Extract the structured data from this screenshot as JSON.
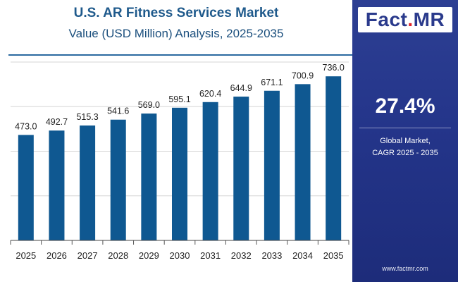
{
  "header": {
    "title": "U.S. AR Fitness Services Market",
    "subtitle": "Value (USD Million) Analysis, 2025-2035"
  },
  "brand": {
    "logo_left": "Fact",
    "logo_dot": ".",
    "logo_right": "MR",
    "website": "www.factmr.com"
  },
  "summary": {
    "cagr_value": "27.4%",
    "cagr_label_line1": "Global Market,",
    "cagr_label_line2": "CAGR 2025 - 2035"
  },
  "colors": {
    "bar": "#0f5891",
    "grid": "#d6d6d6",
    "panel": "#24358a"
  },
  "chart_data": {
    "type": "bar",
    "title": "U.S. AR Fitness Services Market",
    "subtitle": "Value (USD Million) Analysis, 2025-2035",
    "xlabel": "",
    "ylabel": "",
    "categories": [
      "2025",
      "2026",
      "2027",
      "2028",
      "2029",
      "2030",
      "2031",
      "2032",
      "2033",
      "2034",
      "2035"
    ],
    "values": [
      473.0,
      492.7,
      515.3,
      541.6,
      569.0,
      595.1,
      620.4,
      644.9,
      671.1,
      700.9,
      736.0
    ],
    "labels": [
      "473.0",
      "492.7",
      "515.3",
      "541.6",
      "569.0",
      "595.1",
      "620.4",
      "644.9",
      "671.1",
      "700.9",
      "736.0"
    ],
    "ylim": [
      0,
      800
    ],
    "grid": true,
    "legend": "none"
  }
}
